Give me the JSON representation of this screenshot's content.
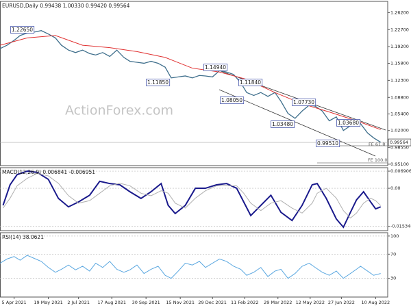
{
  "chart_data": [
    {
      "type": "line",
      "title": "EURUSD,Daily  0.99438 1.00330 0.99420 0.99564",
      "watermark": "ActionForex.com",
      "xlim": [
        0,
        385
      ],
      "x": [
        0,
        7,
        14,
        20,
        27,
        34,
        41,
        48,
        55,
        61,
        68,
        75,
        82,
        89,
        95,
        102,
        109,
        116,
        123,
        129,
        136,
        143,
        150,
        157,
        164,
        170,
        177,
        184,
        191,
        198,
        204,
        211,
        218,
        225,
        232,
        239,
        245,
        252,
        259,
        266,
        273,
        279,
        286,
        293,
        300,
        307,
        313,
        320,
        327,
        334,
        341,
        348,
        354,
        358,
        365,
        371,
        378
      ],
      "series": [
        {
          "color": "#3f6f8c",
          "values": [
            1.188,
            1.195,
            1.205,
            1.215,
            1.22,
            1.222,
            1.225,
            1.218,
            1.21,
            1.195,
            1.185,
            1.18,
            1.185,
            1.178,
            1.175,
            1.18,
            1.172,
            1.185,
            1.17,
            1.162,
            1.16,
            1.158,
            1.162,
            1.158,
            1.15,
            1.128,
            1.13,
            1.132,
            1.128,
            1.133,
            1.132,
            1.13,
            1.143,
            1.14,
            1.135,
            1.118,
            1.098,
            1.092,
            1.098,
            1.09,
            1.098,
            1.08,
            1.055,
            1.045,
            1.06,
            1.072,
            1.07,
            1.06,
            1.04,
            1.048,
            1.02,
            1.03,
            1.03,
            1.034,
            1.015,
            1.005,
            0.996
          ]
        },
        {
          "color": "#e03030",
          "x": [
            0,
            27,
            55,
            82,
            109,
            136,
            164,
            191,
            218,
            245,
            273,
            300,
            327,
            354,
            378
          ],
          "values": [
            1.195,
            1.21,
            1.215,
            1.195,
            1.19,
            1.182,
            1.17,
            1.148,
            1.14,
            1.125,
            1.098,
            1.075,
            1.058,
            1.04,
            1.022
          ]
        }
      ],
      "ylim": [
        0.948,
        1.285
      ],
      "yticks": [
        {
          "value": 1.262,
          "label": "1.26200"
        },
        {
          "value": 1.227,
          "label": "1.22700"
        },
        {
          "value": 1.192,
          "label": "1.19200"
        },
        {
          "value": 1.158,
          "label": "1.15800"
        },
        {
          "value": 1.123,
          "label": "1.12300"
        },
        {
          "value": 1.088,
          "label": "1.08800"
        },
        {
          "value": 1.054,
          "label": "1.05400"
        },
        {
          "value": 1.02,
          "label": "1.02000"
        },
        {
          "value": 0.9855,
          "label": "0.98550"
        },
        {
          "value": 0.951,
          "label": "0.95100"
        }
      ],
      "grid": false,
      "last_price": 0.99564,
      "annotations": [
        "1.22650",
        "1.11850",
        "1.14940",
        "1.11840",
        "1.08050",
        "1.07730",
        "1.03480",
        "1.03680",
        "0.99510"
      ],
      "fe_labels": [
        "FE 61.8",
        "FE 100.0"
      ]
    },
    {
      "type": "line",
      "title": "MACD(12,26,9) 0.006841 -0.006951",
      "xlim": [
        0,
        385
      ],
      "x": [
        3,
        10,
        17,
        27,
        37,
        48,
        58,
        68,
        78,
        89,
        99,
        109,
        119,
        129,
        140,
        150,
        160,
        167,
        174,
        184,
        194,
        204,
        215,
        225,
        235,
        242,
        249,
        259,
        269,
        279,
        290,
        300,
        310,
        315,
        324,
        334,
        341,
        348,
        354,
        361,
        368,
        373,
        378
      ],
      "series": [
        {
          "color": "#1a1a8c",
          "values": [
            -0.0069,
            0.0014,
            0.0055,
            0.0069,
            0.0064,
            0.0036,
            -0.0041,
            -0.0075,
            -0.0055,
            -0.0028,
            0.0028,
            0.0019,
            0.0014,
            -0.0014,
            -0.0041,
            -0.0014,
            0.0019,
            -0.0069,
            -0.0102,
            -0.0069,
            0,
            0,
            0.0014,
            0.0019,
            0,
            -0.0055,
            -0.011,
            -0.0069,
            -0.0028,
            -0.0097,
            -0.013,
            -0.0069,
            0.0014,
            0.0019,
            -0.0041,
            -0.0124,
            -0.0157,
            -0.0097,
            -0.0047,
            -0.0014,
            -0.0055,
            -0.0083,
            -0.0075
          ]
        },
        {
          "color": "#b0b0b0",
          "values": [
            -0.008,
            -0.004,
            0.001,
            0.004,
            0.006,
            0.005,
            0.002,
            -0.003,
            -0.006,
            -0.005,
            -0.002,
            0.001,
            0.002,
            0.001,
            -0.002,
            -0.003,
            -0.001,
            -0.002,
            -0.006,
            -0.008,
            -0.004,
            -0.001,
            0.001,
            0.001,
            0.001,
            -0.002,
            -0.006,
            -0.009,
            -0.006,
            -0.005,
            -0.008,
            -0.01,
            -0.006,
            -0.002,
            0,
            -0.004,
            -0.009,
            -0.012,
            -0.01,
            -0.006,
            -0.004,
            -0.005,
            -0.007
          ]
        }
      ],
      "ylim": [
        -0.0171,
        0.0083
      ],
      "yticks": [
        0.006906,
        {
          "value": 0,
          "label": "0.00"
        },
        -0.015348
      ],
      "grid": true
    },
    {
      "type": "line",
      "title": "RSI(14) 38.0621",
      "xlim": [
        0,
        385
      ],
      "x": [
        0,
        7,
        14,
        20,
        27,
        34,
        41,
        48,
        55,
        61,
        68,
        75,
        82,
        89,
        95,
        102,
        109,
        116,
        123,
        129,
        136,
        143,
        150,
        157,
        164,
        170,
        177,
        184,
        191,
        198,
        204,
        211,
        218,
        225,
        232,
        239,
        245,
        252,
        259,
        266,
        273,
        279,
        286,
        293,
        300,
        307,
        313,
        320,
        327,
        334,
        341,
        348,
        354,
        358,
        365,
        371,
        378
      ],
      "series": [
        {
          "color": "#5aa7e0",
          "values": [
            55,
            62,
            66,
            60,
            68,
            63,
            58,
            48,
            40,
            45,
            52,
            44,
            50,
            42,
            55,
            48,
            58,
            45,
            40,
            44,
            52,
            38,
            45,
            50,
            35,
            30,
            42,
            55,
            52,
            58,
            48,
            55,
            62,
            58,
            50,
            45,
            35,
            40,
            48,
            33,
            42,
            45,
            30,
            38,
            50,
            55,
            48,
            40,
            35,
            42,
            30,
            38,
            45,
            50,
            42,
            35,
            38
          ]
        }
      ],
      "ylim": [
        -1,
        105.5
      ],
      "yticks": [
        100,
        70,
        30
      ],
      "grid": true,
      "xticks": [
        {
          "value": 14,
          "label": "5 Apr 2021"
        },
        {
          "value": 48,
          "label": "19 May 2021"
        },
        {
          "value": 78,
          "label": "2 Jul 2021"
        },
        {
          "value": 111,
          "label": "17 Aug 2021"
        },
        {
          "value": 145,
          "label": "30 Sep 2021"
        },
        {
          "value": 179,
          "label": "15 Nov 2021"
        },
        {
          "value": 211,
          "label": "29 Dec 2021"
        },
        {
          "value": 243,
          "label": "11 Feb 2022"
        },
        {
          "value": 276,
          "label": "29 Mar 2022"
        },
        {
          "value": 308,
          "label": "12 May 2022"
        },
        {
          "value": 339,
          "label": "27 Jun 2022"
        },
        {
          "value": 373,
          "label": "10 Aug 2022"
        }
      ]
    }
  ]
}
